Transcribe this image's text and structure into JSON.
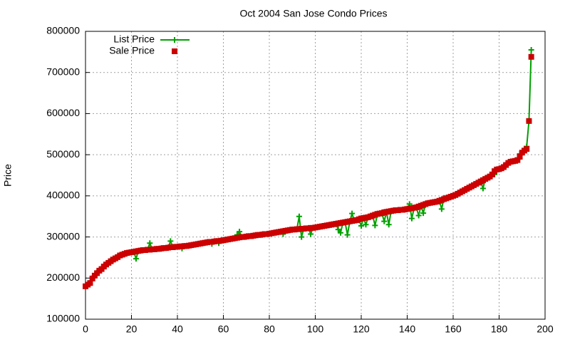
{
  "chart_data": {
    "type": "line",
    "title": "Oct 2004 San Jose Condo Prices",
    "y_label": "Price",
    "xlim": [
      0,
      200
    ],
    "xticks": [
      0,
      20,
      40,
      60,
      80,
      100,
      120,
      140,
      160,
      180,
      200
    ],
    "ylim": [
      100000,
      800000
    ],
    "yticks": [
      100000,
      200000,
      300000,
      400000,
      500000,
      600000,
      700000,
      800000
    ],
    "grid": true,
    "legend": "top-left",
    "x": [
      0,
      1,
      2,
      3,
      4,
      5,
      6,
      7,
      8,
      9,
      10,
      11,
      12,
      13,
      14,
      15,
      16,
      17,
      18,
      19,
      20,
      21,
      22,
      23,
      24,
      25,
      26,
      27,
      28,
      29,
      30,
      31,
      32,
      33,
      34,
      35,
      36,
      37,
      38,
      39,
      40,
      41,
      42,
      43,
      44,
      45,
      46,
      47,
      48,
      49,
      50,
      51,
      52,
      53,
      54,
      55,
      56,
      57,
      58,
      59,
      60,
      61,
      62,
      63,
      64,
      65,
      66,
      67,
      68,
      69,
      70,
      71,
      72,
      73,
      74,
      75,
      76,
      77,
      78,
      79,
      80,
      81,
      82,
      83,
      84,
      85,
      86,
      87,
      88,
      89,
      90,
      91,
      92,
      93,
      94,
      95,
      96,
      97,
      98,
      99,
      100,
      101,
      102,
      103,
      104,
      105,
      106,
      107,
      108,
      109,
      110,
      111,
      112,
      113,
      114,
      115,
      116,
      117,
      118,
      119,
      120,
      121,
      122,
      123,
      124,
      125,
      126,
      127,
      128,
      129,
      130,
      131,
      132,
      133,
      134,
      135,
      136,
      137,
      138,
      139,
      140,
      141,
      142,
      143,
      144,
      145,
      146,
      147,
      148,
      149,
      150,
      151,
      152,
      153,
      154,
      155,
      156,
      157,
      158,
      159,
      160,
      161,
      162,
      163,
      164,
      165,
      166,
      167,
      168,
      169,
      170,
      171,
      172,
      173,
      174,
      175,
      176,
      177,
      178,
      179,
      180,
      181,
      182,
      183,
      184,
      185,
      186,
      187,
      188,
      189,
      190,
      191,
      192,
      193,
      194
    ],
    "series": [
      {
        "name": "List Price",
        "color": "#00a000",
        "style": "linespoints",
        "values": [
          180000,
          185000,
          188000,
          200000,
          206000,
          213000,
          219000,
          222000,
          229000,
          233000,
          237000,
          242000,
          245000,
          248000,
          252000,
          255000,
          257000,
          259000,
          261000,
          262000,
          263000,
          264000,
          247000,
          266000,
          267000,
          268000,
          268000,
          269000,
          285000,
          270000,
          270000,
          271000,
          271000,
          272000,
          273000,
          273000,
          274000,
          290000,
          275000,
          276000,
          276000,
          277000,
          272000,
          278000,
          278000,
          279000,
          280000,
          281000,
          282000,
          283000,
          284000,
          285000,
          286000,
          287000,
          288000,
          283000,
          289000,
          290000,
          285000,
          291000,
          292000,
          293000,
          294000,
          295000,
          296000,
          297000,
          305000,
          313000,
          300000,
          300000,
          301000,
          302000,
          302000,
          303000,
          304000,
          305000,
          305000,
          306000,
          307000,
          307000,
          308000,
          309000,
          310000,
          311000,
          312000,
          313000,
          307000,
          315000,
          316000,
          317000,
          318000,
          318000,
          319000,
          350000,
          300000,
          320000,
          321000,
          321000,
          307000,
          322000,
          323000,
          324000,
          325000,
          326000,
          327000,
          328000,
          329000,
          330000,
          331000,
          332000,
          318000,
          310000,
          334000,
          335000,
          305000,
          337000,
          357000,
          339000,
          340000,
          341000,
          327000,
          346000,
          330000,
          348000,
          350000,
          352000,
          328000,
          354000,
          356000,
          357000,
          338000,
          361000,
          330000,
          363000,
          364000,
          365000,
          365000,
          366000,
          366000,
          367000,
          368000,
          380000,
          345000,
          370000,
          371000,
          352000,
          376000,
          358000,
          380000,
          382000,
          383000,
          384000,
          385000,
          386000,
          388000,
          368000,
          395000,
          394000,
          396000,
          398000,
          400000,
          402000,
          405000,
          408000,
          411000,
          414000,
          417000,
          420000,
          423000,
          426000,
          429000,
          432000,
          435000,
          418000,
          441000,
          444000,
          447000,
          452000,
          452000,
          464000,
          465000,
          467000,
          472000,
          475000,
          480000,
          483000,
          484000,
          485000,
          487000,
          502000,
          505000,
          515000,
          520000,
          582000,
          755000
        ]
      },
      {
        "name": "Sale Price",
        "color": "#cc0000",
        "style": "points",
        "values": [
          180000,
          184000,
          188000,
          199000,
          206000,
          212000,
          218000,
          222000,
          228000,
          233000,
          237000,
          241000,
          245000,
          248000,
          251000,
          255000,
          257000,
          259000,
          261000,
          262000,
          263000,
          264000,
          265000,
          266000,
          267000,
          268000,
          268000,
          269000,
          269000,
          270000,
          270000,
          271000,
          271000,
          272000,
          273000,
          273000,
          274000,
          275000,
          275000,
          276000,
          276000,
          277000,
          277000,
          278000,
          278000,
          279000,
          280000,
          281000,
          282000,
          283000,
          284000,
          285000,
          286000,
          287000,
          288000,
          288000,
          289000,
          290000,
          290000,
          291000,
          292000,
          293000,
          294000,
          295000,
          296000,
          297000,
          298000,
          299000,
          300000,
          300000,
          301000,
          302000,
          302000,
          303000,
          304000,
          305000,
          305000,
          306000,
          307000,
          307000,
          308000,
          309000,
          310000,
          311000,
          312000,
          313000,
          314000,
          315000,
          316000,
          317000,
          318000,
          318000,
          319000,
          319000,
          320000,
          320000,
          321000,
          321000,
          322000,
          322000,
          323000,
          324000,
          325000,
          326000,
          327000,
          328000,
          329000,
          330000,
          331000,
          332000,
          333000,
          334000,
          335000,
          336000,
          337000,
          338000,
          339000,
          340000,
          341000,
          343000,
          345000,
          346000,
          347000,
          348000,
          350000,
          352000,
          354000,
          356000,
          357000,
          358000,
          360000,
          361000,
          362000,
          363000,
          364000,
          365000,
          365000,
          366000,
          366000,
          367000,
          368000,
          369000,
          370000,
          371000,
          372000,
          374000,
          376000,
          378000,
          380000,
          382000,
          383000,
          384000,
          385000,
          386000,
          388000,
          390000,
          392000,
          394000,
          396000,
          398000,
          400000,
          402000,
          405000,
          408000,
          411000,
          414000,
          417000,
          420000,
          423000,
          426000,
          429000,
          432000,
          435000,
          438000,
          441000,
          444000,
          447000,
          452000,
          460000,
          464000,
          465000,
          467000,
          470000,
          475000,
          480000,
          483000,
          484000,
          485000,
          487000,
          495000,
          505000,
          510000,
          514000,
          582000,
          738000
        ]
      }
    ]
  }
}
